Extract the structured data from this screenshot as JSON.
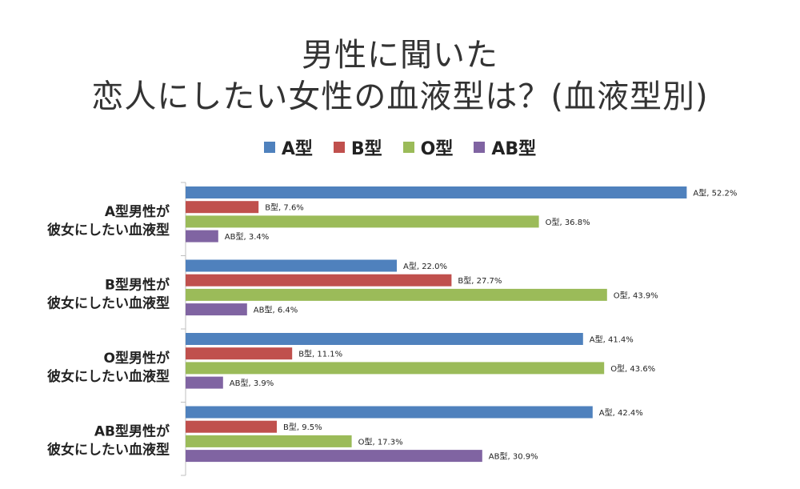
{
  "title_lines": [
    "男性に聞いた",
    "恋人にしたい女性の血液型は？(血液型別)"
  ],
  "chart_data": {
    "type": "bar",
    "orientation": "horizontal",
    "categories": [
      [
        "A型男性が",
        "彼女にしたい血液型"
      ],
      [
        "B型男性が",
        "彼女にしたい血液型"
      ],
      [
        "O型男性が",
        "彼女にしたい血液型"
      ],
      [
        "AB型男性が",
        "彼女にしたい血液型"
      ]
    ],
    "series": [
      {
        "name": "A型",
        "color": "#4f81bd",
        "values": [
          52.2,
          22.0,
          41.4,
          42.4
        ]
      },
      {
        "name": "B型",
        "color": "#c0504d",
        "values": [
          7.6,
          27.7,
          11.1,
          9.5
        ]
      },
      {
        "name": "O型",
        "color": "#9bbb59",
        "values": [
          36.8,
          43.9,
          43.6,
          17.3
        ]
      },
      {
        "name": "AB型",
        "color": "#8064a2",
        "values": [
          3.4,
          6.4,
          3.9,
          30.9
        ]
      }
    ],
    "value_suffix": "%",
    "legend_position": "top",
    "grid": "category-separators"
  }
}
